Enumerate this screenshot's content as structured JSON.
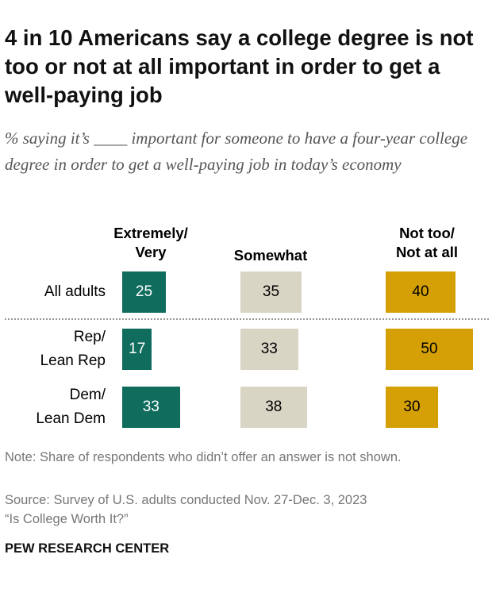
{
  "chart_data": {
    "type": "bar",
    "title": "4 in 10 Americans say a college degree is not too or not at all important in order to get a well-paying job",
    "subtitle": "% saying it’s ____ important for someone to have a four-year college degree in order to get a well-paying job in today’s economy",
    "categories": [
      "All adults",
      "Rep/\nLean Rep",
      "Dem/\nLean Dem"
    ],
    "series": [
      {
        "name": "Extremely/\nVery",
        "color": "#106d5e",
        "text_color": "#ffffff",
        "values": [
          25,
          17,
          33
        ]
      },
      {
        "name": "Somewhat",
        "color": "#d8d5c5",
        "text_color": "#000000",
        "values": [
          35,
          33,
          38
        ]
      },
      {
        "name": "Not too/\nNot at all",
        "color": "#d4a005",
        "text_color": "#000000",
        "values": [
          40,
          50,
          30
        ]
      }
    ],
    "note": "Note: Share of respondents who didn’t offer an answer is not shown.",
    "source": "Source: Survey of U.S. adults conducted Nov. 27-Dec. 3, 2023",
    "report": "“Is College Worth It?”",
    "logo": "PEW RESEARCH CENTER"
  }
}
